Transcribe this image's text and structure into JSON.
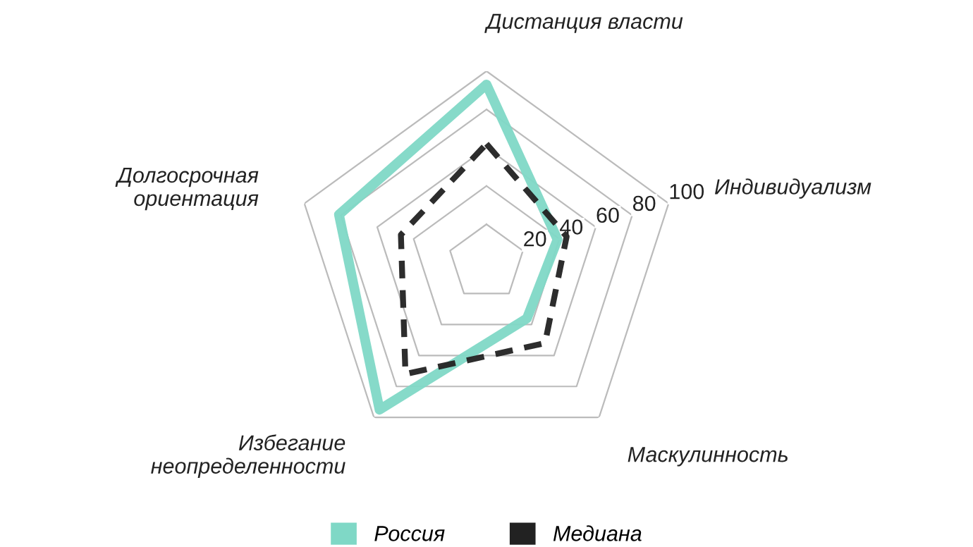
{
  "chart_data": {
    "type": "radar",
    "categories": [
      "Дистанция власти",
      "Индивидуализм",
      "Маскулинность",
      "Избегание\nнеопределенности",
      "Долгосрочная\nориентация"
    ],
    "series": [
      {
        "name": "Россия",
        "color": "#7fd8c6",
        "values": [
          93,
          39,
          36,
          95,
          81
        ],
        "line_style": "solid"
      },
      {
        "name": "Медиана",
        "color": "#222222",
        "values": [
          62,
          44,
          52,
          72,
          47
        ],
        "line_style": "dashed"
      }
    ],
    "ylim": [
      0,
      100
    ],
    "yticks": [
      20,
      40,
      60,
      80,
      100
    ],
    "grid": true,
    "legend": "bottom",
    "marker": "none"
  }
}
